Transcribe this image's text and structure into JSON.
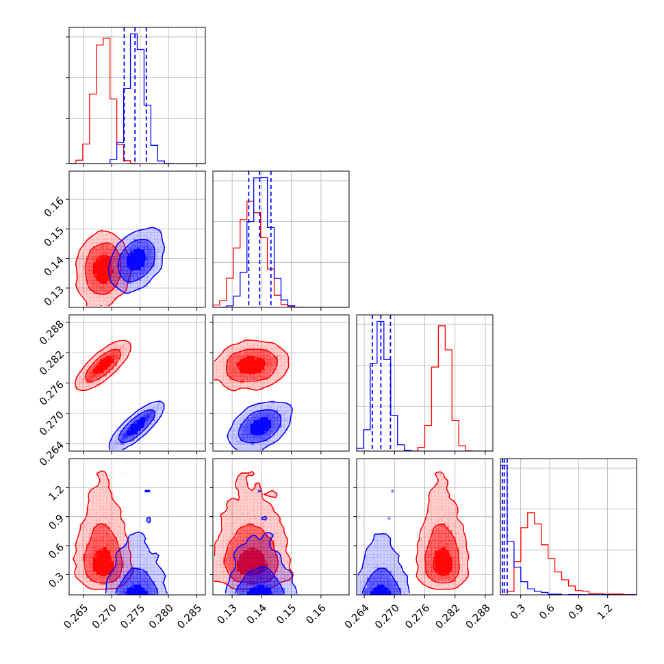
{
  "chart_data": {
    "type": "corner",
    "params": [
      {
        "range": [
          0.2625,
          0.2865
        ],
        "ticks": [
          0.265,
          0.27,
          0.275,
          0.28,
          0.285
        ],
        "tick_labels": [
          "0.265",
          "0.270",
          "0.275",
          "0.280",
          "0.285"
        ]
      },
      {
        "range": [
          0.1235,
          0.1695
        ],
        "ticks": [
          0.13,
          0.14,
          0.15,
          0.16
        ],
        "tick_labels": [
          "0.13",
          "0.14",
          "0.15",
          "0.16"
        ]
      },
      {
        "range": [
          0.2625,
          0.2895
        ],
        "ticks": [
          0.264,
          0.27,
          0.276,
          0.282,
          0.288
        ],
        "tick_labels": [
          "0.264",
          "0.270",
          "0.276",
          "0.282",
          "0.288"
        ]
      },
      {
        "range": [
          0.09,
          1.5
        ],
        "ticks": [
          0.3,
          0.6,
          0.9,
          1.2
        ],
        "tick_labels": [
          "0.3",
          "0.6",
          "0.9",
          "1.2"
        ]
      }
    ],
    "series": [
      {
        "color": "#ff0000",
        "means": [
          0.2685,
          0.1365,
          0.2795,
          0.46
        ],
        "sds": [
          0.0015,
          0.0042,
          0.0015,
          0.15
        ],
        "skew": [
          0,
          0,
          0,
          1
        ]
      },
      {
        "color": "#0000ff",
        "means": [
          0.2743,
          0.1393,
          0.2673,
          0.105
        ],
        "sds": [
          0.0015,
          0.0033,
          0.0015,
          0.07
        ],
        "skew": [
          0,
          0,
          0,
          1
        ]
      }
    ],
    "correlations": [
      {
        "pair": [
          1,
          0
        ],
        "red": 0.1,
        "blue": 0.35
      },
      {
        "pair": [
          2,
          0
        ],
        "red": 0.9,
        "blue": 0.95
      },
      {
        "pair": [
          2,
          1
        ],
        "red": 0.05,
        "blue": 0.1
      },
      {
        "pair": [
          3,
          0
        ],
        "red": 0.0,
        "blue": 0.0
      },
      {
        "pair": [
          3,
          1
        ],
        "red": 0.0,
        "blue": 0.0
      },
      {
        "pair": [
          3,
          2
        ],
        "red": 0.0,
        "blue": 0.0
      }
    ],
    "quantile_lines": [
      {
        "param": 0,
        "values": [
          0.2722,
          0.2741,
          0.2761
        ]
      },
      {
        "param": 1,
        "values": [
          0.1356,
          0.1393,
          0.1431
        ]
      },
      {
        "param": 2,
        "values": [
          0.2656,
          0.2673,
          0.2692
        ]
      },
      {
        "param": 3,
        "values": [
          0.11,
          0.13,
          0.16
        ]
      }
    ],
    "histogram_bins": 20,
    "contour_levels": [
      0.39,
      0.86,
      0.99
    ],
    "grid": true,
    "colors": {
      "red": "#ff0000",
      "blue": "#0000ff",
      "grid": "#b0b0b0",
      "frame": "#000000"
    }
  }
}
